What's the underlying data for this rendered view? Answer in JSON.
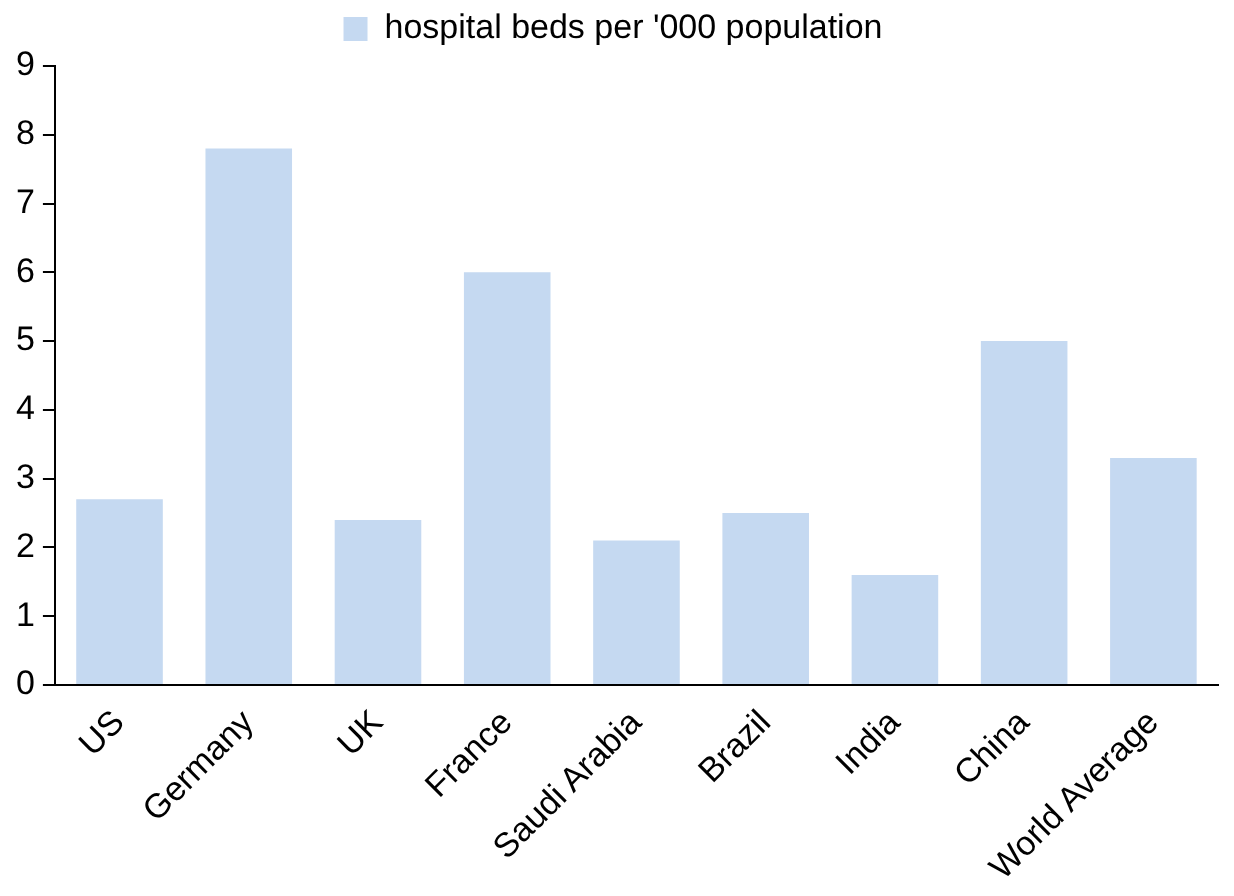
{
  "chart_data": {
    "type": "bar",
    "categories": [
      "US",
      "Germany",
      "UK",
      "France",
      "Saudi Arabia",
      "Brazil",
      "India",
      "China",
      "World Average"
    ],
    "series": [
      {
        "name": "hospital beds per '000 population",
        "color": "#c5d9f1",
        "values": [
          2.7,
          7.8,
          2.4,
          6.0,
          2.1,
          2.5,
          1.6,
          5.0,
          3.3
        ]
      }
    ],
    "ylim": [
      0,
      9
    ],
    "yticks": [
      0,
      1,
      2,
      3,
      4,
      5,
      6,
      7,
      8,
      9
    ],
    "grid": false,
    "legend": "top"
  }
}
